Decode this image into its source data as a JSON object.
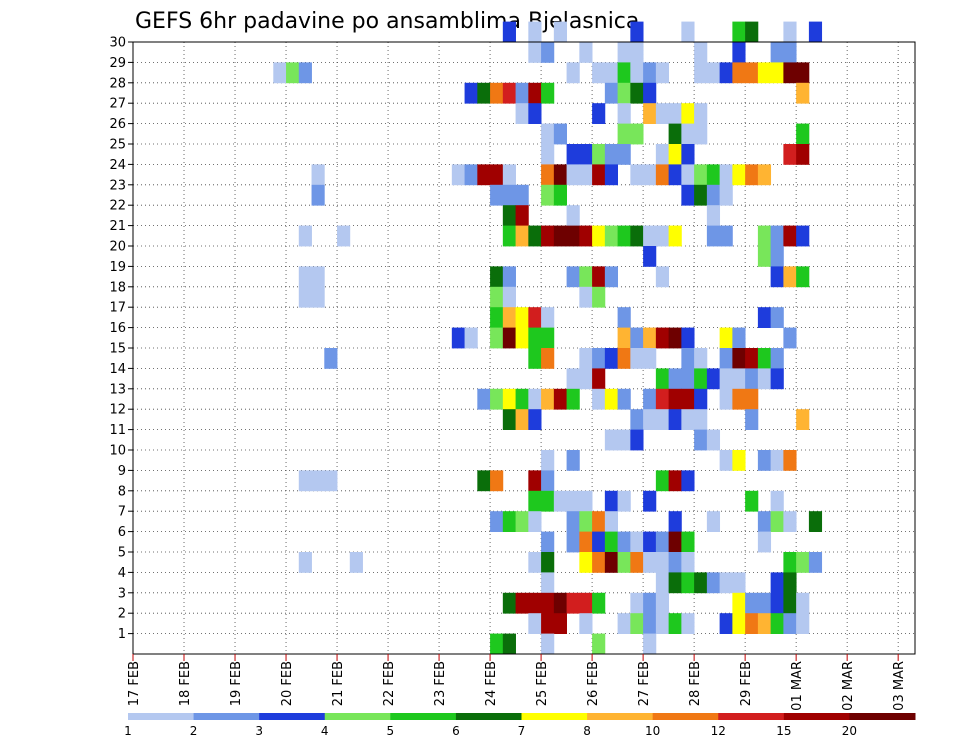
{
  "chart_data": {
    "type": "heatmap",
    "title": "GEFS 6hr padavine po ansamblima Bjelasnica",
    "xlabel": "",
    "ylabel": "",
    "x_ticks": [
      "17 FEB",
      "18 FEB",
      "19 FEB",
      "20 FEB",
      "21 FEB",
      "22 FEB",
      "23 FEB",
      "24 FEB",
      "25 FEB",
      "26 FEB",
      "27 FEB",
      "28 FEB",
      "29 FEB",
      "01 MAR",
      "02 MAR",
      "03 MAR"
    ],
    "x_unit": "6-hour steps from 17 FEB 00Z",
    "y_ticks": [
      1,
      2,
      3,
      4,
      5,
      6,
      7,
      8,
      9,
      10,
      11,
      12,
      13,
      14,
      15,
      16,
      17,
      18,
      19,
      20,
      21,
      22,
      23,
      24,
      25,
      26,
      27,
      28,
      29,
      30
    ],
    "ylim": [
      0,
      30
    ],
    "grid": true,
    "legend": {
      "position": "bottom",
      "labels": [
        "1",
        "2",
        "3",
        "4",
        "5",
        "6",
        "7",
        "8",
        "10",
        "12",
        "15",
        "20"
      ],
      "colors": [
        "#b4c8f0",
        "#6e96e6",
        "#1e3cdc",
        "#78e65a",
        "#1ec81e",
        "#0a6e0a",
        "#ffff00",
        "#ffb432",
        "#f07814",
        "#d21e1e",
        "#a00000",
        "#6e0000"
      ]
    },
    "cells": [
      [
        29,
        30,
        3
      ],
      [
        31,
        30,
        1
      ],
      [
        33,
        30,
        1
      ],
      [
        39,
        30,
        3
      ],
      [
        43,
        30,
        1
      ],
      [
        47,
        30,
        5
      ],
      [
        48,
        30,
        6
      ],
      [
        51,
        30,
        1
      ],
      [
        53,
        30,
        3
      ],
      [
        31,
        29,
        1
      ],
      [
        32,
        29,
        2
      ],
      [
        35,
        29,
        1
      ],
      [
        38,
        29,
        1
      ],
      [
        39,
        29,
        1
      ],
      [
        44,
        29,
        1
      ],
      [
        47,
        29,
        3
      ],
      [
        50,
        29,
        2
      ],
      [
        51,
        29,
        2
      ],
      [
        11,
        28,
        1
      ],
      [
        12,
        28,
        4
      ],
      [
        13,
        28,
        2
      ],
      [
        34,
        28,
        1
      ],
      [
        36,
        28,
        1
      ],
      [
        37,
        28,
        1
      ],
      [
        38,
        28,
        5
      ],
      [
        39,
        28,
        1
      ],
      [
        40,
        28,
        2
      ],
      [
        41,
        28,
        1
      ],
      [
        44,
        28,
        1
      ],
      [
        45,
        28,
        1
      ],
      [
        46,
        28,
        3
      ],
      [
        47,
        28,
        9
      ],
      [
        48,
        28,
        9
      ],
      [
        49,
        28,
        7
      ],
      [
        50,
        28,
        7
      ],
      [
        51,
        28,
        12
      ],
      [
        52,
        28,
        12
      ],
      [
        26,
        27,
        3
      ],
      [
        27,
        27,
        6
      ],
      [
        28,
        27,
        9
      ],
      [
        29,
        27,
        10
      ],
      [
        30,
        27,
        2
      ],
      [
        31,
        27,
        11
      ],
      [
        32,
        27,
        5
      ],
      [
        37,
        27,
        2
      ],
      [
        38,
        27,
        4
      ],
      [
        39,
        27,
        6
      ],
      [
        40,
        27,
        3
      ],
      [
        52,
        27,
        8
      ],
      [
        30,
        26,
        1
      ],
      [
        31,
        26,
        3
      ],
      [
        36,
        26,
        3
      ],
      [
        38,
        26,
        1
      ],
      [
        40,
        26,
        8
      ],
      [
        41,
        26,
        1
      ],
      [
        42,
        26,
        1
      ],
      [
        43,
        26,
        7
      ],
      [
        44,
        26,
        1
      ],
      [
        32,
        25,
        1
      ],
      [
        33,
        25,
        2
      ],
      [
        38,
        25,
        4
      ],
      [
        39,
        25,
        4
      ],
      [
        42,
        25,
        6
      ],
      [
        43,
        25,
        1
      ],
      [
        44,
        25,
        1
      ],
      [
        52,
        25,
        5
      ],
      [
        32,
        24,
        1
      ],
      [
        34,
        24,
        3
      ],
      [
        35,
        24,
        3
      ],
      [
        36,
        24,
        4
      ],
      [
        37,
        24,
        2
      ],
      [
        38,
        24,
        2
      ],
      [
        41,
        24,
        1
      ],
      [
        42,
        24,
        7
      ],
      [
        43,
        24,
        3
      ],
      [
        51,
        24,
        10
      ],
      [
        52,
        24,
        11
      ],
      [
        14,
        23,
        1
      ],
      [
        25,
        23,
        1
      ],
      [
        26,
        23,
        2
      ],
      [
        27,
        23,
        11
      ],
      [
        28,
        23,
        11
      ],
      [
        29,
        23,
        1
      ],
      [
        32,
        23,
        9
      ],
      [
        33,
        23,
        12
      ],
      [
        34,
        23,
        1
      ],
      [
        35,
        23,
        1
      ],
      [
        36,
        23,
        11
      ],
      [
        37,
        23,
        3
      ],
      [
        39,
        23,
        1
      ],
      [
        40,
        23,
        1
      ],
      [
        41,
        23,
        9
      ],
      [
        42,
        23,
        3
      ],
      [
        43,
        23,
        1
      ],
      [
        44,
        23,
        4
      ],
      [
        45,
        23,
        5
      ],
      [
        46,
        23,
        1
      ],
      [
        47,
        23,
        7
      ],
      [
        48,
        23,
        9
      ],
      [
        49,
        23,
        8
      ],
      [
        14,
        22,
        2
      ],
      [
        28,
        22,
        2
      ],
      [
        29,
        22,
        2
      ],
      [
        30,
        22,
        2
      ],
      [
        32,
        22,
        4
      ],
      [
        33,
        22,
        5
      ],
      [
        43,
        22,
        3
      ],
      [
        44,
        22,
        6
      ],
      [
        45,
        22,
        2
      ],
      [
        46,
        22,
        1
      ],
      [
        29,
        21,
        6
      ],
      [
        30,
        21,
        11
      ],
      [
        34,
        21,
        1
      ],
      [
        45,
        21,
        1
      ],
      [
        13,
        20,
        1
      ],
      [
        16,
        20,
        1
      ],
      [
        29,
        20,
        5
      ],
      [
        30,
        20,
        8
      ],
      [
        31,
        20,
        6
      ],
      [
        32,
        20,
        11
      ],
      [
        33,
        20,
        12
      ],
      [
        34,
        20,
        12
      ],
      [
        35,
        20,
        11
      ],
      [
        36,
        20,
        7
      ],
      [
        37,
        20,
        4
      ],
      [
        38,
        20,
        5
      ],
      [
        39,
        20,
        6
      ],
      [
        40,
        20,
        1
      ],
      [
        41,
        20,
        1
      ],
      [
        42,
        20,
        7
      ],
      [
        45,
        20,
        2
      ],
      [
        46,
        20,
        2
      ],
      [
        49,
        20,
        4
      ],
      [
        50,
        20,
        2
      ],
      [
        51,
        20,
        11
      ],
      [
        52,
        20,
        3
      ],
      [
        49,
        19,
        4
      ],
      [
        50,
        19,
        2
      ],
      [
        40,
        19,
        3
      ],
      [
        13,
        18,
        1
      ],
      [
        14,
        18,
        1
      ],
      [
        28,
        18,
        6
      ],
      [
        29,
        18,
        2
      ],
      [
        34,
        18,
        2
      ],
      [
        35,
        18,
        4
      ],
      [
        36,
        18,
        11
      ],
      [
        37,
        18,
        2
      ],
      [
        41,
        18,
        1
      ],
      [
        50,
        18,
        3
      ],
      [
        51,
        18,
        8
      ],
      [
        52,
        18,
        5
      ],
      [
        13,
        17,
        1
      ],
      [
        14,
        17,
        1
      ],
      [
        28,
        17,
        4
      ],
      [
        29,
        17,
        1
      ],
      [
        35,
        17,
        1
      ],
      [
        36,
        17,
        4
      ],
      [
        28,
        16,
        5
      ],
      [
        29,
        16,
        8
      ],
      [
        30,
        16,
        7
      ],
      [
        31,
        16,
        10
      ],
      [
        32,
        16,
        1
      ],
      [
        38,
        16,
        2
      ],
      [
        49,
        16,
        3
      ],
      [
        50,
        16,
        2
      ],
      [
        25,
        15,
        3
      ],
      [
        26,
        15,
        1
      ],
      [
        28,
        15,
        4
      ],
      [
        29,
        15,
        12
      ],
      [
        30,
        15,
        7
      ],
      [
        31,
        15,
        5
      ],
      [
        32,
        15,
        5
      ],
      [
        38,
        15,
        8
      ],
      [
        39,
        15,
        2
      ],
      [
        40,
        15,
        8
      ],
      [
        41,
        15,
        11
      ],
      [
        42,
        15,
        12
      ],
      [
        43,
        15,
        3
      ],
      [
        46,
        15,
        7
      ],
      [
        47,
        15,
        2
      ],
      [
        51,
        15,
        2
      ],
      [
        15,
        14,
        2
      ],
      [
        31,
        14,
        5
      ],
      [
        32,
        14,
        9
      ],
      [
        35,
        14,
        1
      ],
      [
        36,
        14,
        2
      ],
      [
        37,
        14,
        3
      ],
      [
        38,
        14,
        9
      ],
      [
        39,
        14,
        1
      ],
      [
        40,
        14,
        1
      ],
      [
        43,
        14,
        2
      ],
      [
        44,
        14,
        1
      ],
      [
        46,
        14,
        2
      ],
      [
        47,
        14,
        12
      ],
      [
        48,
        14,
        11
      ],
      [
        49,
        14,
        5
      ],
      [
        50,
        14,
        2
      ],
      [
        34,
        13,
        1
      ],
      [
        35,
        13,
        1
      ],
      [
        36,
        13,
        11
      ],
      [
        41,
        13,
        5
      ],
      [
        42,
        13,
        2
      ],
      [
        43,
        13,
        2
      ],
      [
        44,
        13,
        5
      ],
      [
        45,
        13,
        3
      ],
      [
        46,
        13,
        1
      ],
      [
        47,
        13,
        1
      ],
      [
        48,
        13,
        2
      ],
      [
        49,
        13,
        1
      ],
      [
        50,
        13,
        3
      ],
      [
        27,
        12,
        2
      ],
      [
        28,
        12,
        4
      ],
      [
        29,
        12,
        7
      ],
      [
        30,
        12,
        5
      ],
      [
        31,
        12,
        1
      ],
      [
        32,
        12,
        8
      ],
      [
        33,
        12,
        11
      ],
      [
        34,
        12,
        5
      ],
      [
        36,
        12,
        1
      ],
      [
        37,
        12,
        7
      ],
      [
        38,
        12,
        2
      ],
      [
        40,
        12,
        2
      ],
      [
        41,
        12,
        10
      ],
      [
        42,
        12,
        11
      ],
      [
        43,
        12,
        11
      ],
      [
        44,
        12,
        3
      ],
      [
        46,
        12,
        1
      ],
      [
        47,
        12,
        9
      ],
      [
        48,
        12,
        9
      ],
      [
        29,
        11,
        6
      ],
      [
        30,
        11,
        8
      ],
      [
        31,
        11,
        3
      ],
      [
        39,
        11,
        2
      ],
      [
        40,
        11,
        1
      ],
      [
        41,
        11,
        1
      ],
      [
        42,
        11,
        3
      ],
      [
        43,
        11,
        1
      ],
      [
        44,
        11,
        1
      ],
      [
        48,
        11,
        2
      ],
      [
        52,
        11,
        8
      ],
      [
        37,
        10,
        1
      ],
      [
        38,
        10,
        1
      ],
      [
        39,
        10,
        3
      ],
      [
        44,
        10,
        2
      ],
      [
        45,
        10,
        1
      ],
      [
        32,
        9,
        1
      ],
      [
        34,
        9,
        2
      ],
      [
        46,
        9,
        1
      ],
      [
        47,
        9,
        7
      ],
      [
        49,
        9,
        2
      ],
      [
        50,
        9,
        1
      ],
      [
        51,
        9,
        9
      ],
      [
        13,
        8,
        1
      ],
      [
        14,
        8,
        1
      ],
      [
        15,
        8,
        1
      ],
      [
        27,
        8,
        6
      ],
      [
        28,
        8,
        9
      ],
      [
        31,
        8,
        11
      ],
      [
        32,
        8,
        2
      ],
      [
        41,
        8,
        5
      ],
      [
        42,
        8,
        11
      ],
      [
        43,
        8,
        3
      ],
      [
        31,
        7,
        5
      ],
      [
        32,
        7,
        5
      ],
      [
        33,
        7,
        1
      ],
      [
        34,
        7,
        1
      ],
      [
        35,
        7,
        1
      ],
      [
        37,
        7,
        3
      ],
      [
        38,
        7,
        1
      ],
      [
        40,
        7,
        3
      ],
      [
        48,
        7,
        5
      ],
      [
        50,
        7,
        1
      ],
      [
        28,
        6,
        2
      ],
      [
        29,
        6,
        5
      ],
      [
        30,
        6,
        4
      ],
      [
        31,
        6,
        1
      ],
      [
        34,
        6,
        2
      ],
      [
        35,
        6,
        4
      ],
      [
        36,
        6,
        9
      ],
      [
        37,
        6,
        1
      ],
      [
        42,
        6,
        3
      ],
      [
        45,
        6,
        1
      ],
      [
        49,
        6,
        2
      ],
      [
        50,
        6,
        4
      ],
      [
        51,
        6,
        1
      ],
      [
        53,
        6,
        6
      ],
      [
        32,
        5,
        2
      ],
      [
        34,
        5,
        2
      ],
      [
        35,
        5,
        9
      ],
      [
        36,
        5,
        3
      ],
      [
        37,
        5,
        5
      ],
      [
        38,
        5,
        2
      ],
      [
        39,
        5,
        1
      ],
      [
        40,
        5,
        3
      ],
      [
        41,
        5,
        2
      ],
      [
        42,
        5,
        12
      ],
      [
        43,
        5,
        5
      ],
      [
        49,
        5,
        1
      ],
      [
        13,
        4,
        1
      ],
      [
        17,
        4,
        1
      ],
      [
        31,
        4,
        1
      ],
      [
        32,
        4,
        6
      ],
      [
        35,
        4,
        7
      ],
      [
        36,
        4,
        9
      ],
      [
        37,
        4,
        12
      ],
      [
        38,
        4,
        4
      ],
      [
        39,
        4,
        9
      ],
      [
        40,
        4,
        1
      ],
      [
        41,
        4,
        1
      ],
      [
        42,
        4,
        2
      ],
      [
        43,
        4,
        1
      ],
      [
        51,
        4,
        5
      ],
      [
        52,
        4,
        4
      ],
      [
        53,
        4,
        2
      ],
      [
        32,
        3,
        1
      ],
      [
        41,
        3,
        1
      ],
      [
        42,
        3,
        6
      ],
      [
        43,
        3,
        5
      ],
      [
        44,
        3,
        6
      ],
      [
        45,
        3,
        2
      ],
      [
        46,
        3,
        1
      ],
      [
        47,
        3,
        1
      ],
      [
        50,
        3,
        3
      ],
      [
        51,
        3,
        6
      ],
      [
        29,
        2,
        6
      ],
      [
        30,
        2,
        11
      ],
      [
        31,
        2,
        11
      ],
      [
        32,
        2,
        11
      ],
      [
        33,
        2,
        12
      ],
      [
        34,
        2,
        10
      ],
      [
        35,
        2,
        10
      ],
      [
        36,
        2,
        5
      ],
      [
        39,
        2,
        1
      ],
      [
        40,
        2,
        2
      ],
      [
        41,
        2,
        1
      ],
      [
        47,
        2,
        7
      ],
      [
        48,
        2,
        2
      ],
      [
        49,
        2,
        2
      ],
      [
        50,
        2,
        3
      ],
      [
        51,
        2,
        6
      ],
      [
        52,
        2,
        1
      ],
      [
        31,
        1,
        1
      ],
      [
        32,
        1,
        11
      ],
      [
        33,
        1,
        11
      ],
      [
        35,
        1,
        1
      ],
      [
        38,
        1,
        1
      ],
      [
        39,
        1,
        4
      ],
      [
        40,
        1,
        2
      ],
      [
        41,
        1,
        1
      ],
      [
        42,
        1,
        5
      ],
      [
        43,
        1,
        1
      ],
      [
        46,
        1,
        3
      ],
      [
        47,
        1,
        7
      ],
      [
        48,
        1,
        9
      ],
      [
        49,
        1,
        8
      ],
      [
        50,
        1,
        5
      ],
      [
        51,
        1,
        2
      ],
      [
        52,
        1,
        1
      ],
      [
        28,
        0,
        5
      ],
      [
        29,
        0,
        6
      ],
      [
        32,
        0,
        1
      ],
      [
        36,
        0,
        4
      ],
      [
        40,
        0,
        1
      ]
    ]
  }
}
